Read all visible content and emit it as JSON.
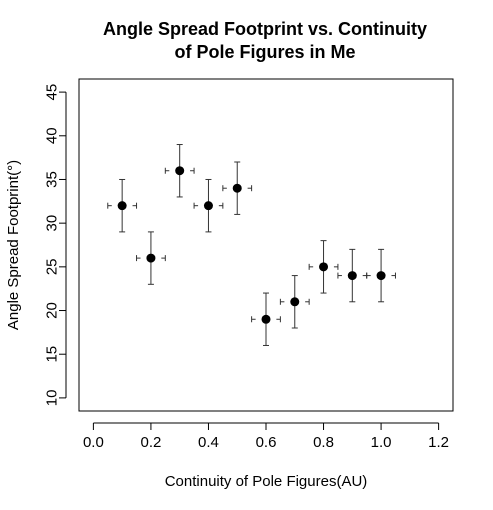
{
  "chart_data": {
    "type": "scatter",
    "title_lines": [
      "Angle Spread Footprint vs. Continuity",
      "of Pole Figures in Me"
    ],
    "xlabel": "Continuity of Pole Figures(AU)",
    "ylabel": "Angle Spread Footprint(°)",
    "xlim": [
      -0.05,
      1.25
    ],
    "ylim": [
      8.5,
      46.5
    ],
    "x_ticks": [
      0.0,
      0.2,
      0.4,
      0.6,
      0.8,
      1.0,
      1.2
    ],
    "x_tick_labels": [
      "0.0",
      "0.2",
      "0.4",
      "0.6",
      "0.8",
      "1.0",
      "1.2"
    ],
    "y_ticks": [
      10,
      15,
      20,
      25,
      30,
      35,
      40,
      45
    ],
    "y_tick_labels": [
      "10",
      "15",
      "20",
      "25",
      "30",
      "35",
      "40",
      "45"
    ],
    "points": [
      {
        "x": 0.1,
        "y": 32,
        "yerr": 3,
        "xerr": 0.05
      },
      {
        "x": 0.2,
        "y": 26,
        "yerr": 3,
        "xerr": 0.05
      },
      {
        "x": 0.3,
        "y": 36,
        "yerr": 3,
        "xerr": 0.05
      },
      {
        "x": 0.4,
        "y": 32,
        "yerr": 3,
        "xerr": 0.05
      },
      {
        "x": 0.5,
        "y": 34,
        "yerr": 3,
        "xerr": 0.05
      },
      {
        "x": 0.6,
        "y": 19,
        "yerr": 3,
        "xerr": 0.05
      },
      {
        "x": 0.7,
        "y": 21,
        "yerr": 3,
        "xerr": 0.05
      },
      {
        "x": 0.8,
        "y": 25,
        "yerr": 3,
        "xerr": 0.05
      },
      {
        "x": 0.9,
        "y": 24,
        "yerr": 3,
        "xerr": 0.05
      },
      {
        "x": 1.0,
        "y": 24,
        "yerr": 3,
        "xerr": 0.05
      }
    ],
    "grid": false,
    "colors": {
      "marker": "#000000",
      "errorbar": "#333333",
      "axis": "#000000"
    }
  }
}
